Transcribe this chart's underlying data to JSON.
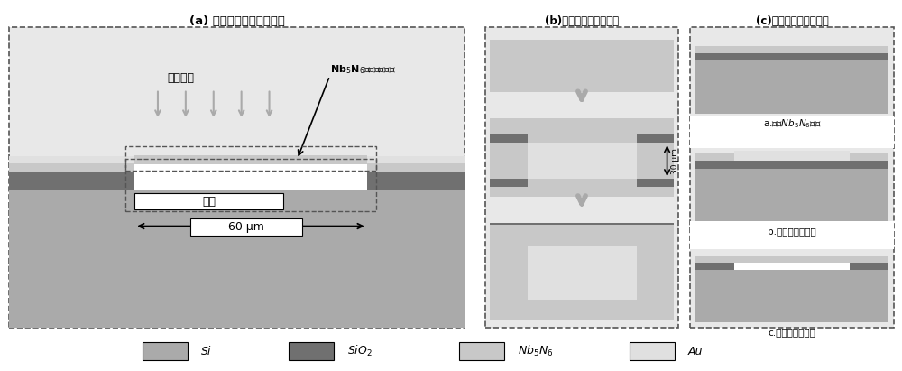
{
  "bg_color": "#ffffff",
  "Si_color": "#aaaaaa",
  "SiO2_color": "#707070",
  "NbN_color": "#c8c8c8",
  "Au_color": "#e0e0e0",
  "panel_bg": "#e8e8e8",
  "white_color": "#ffffff",
  "dashed_color": "#555555",
  "title_a": "(a) 悬空微桥探测器示意图",
  "title_b": "(b)器件工艺流程俯视图",
  "title_c": "(c)器件工艺流程侧视图",
  "label_terahertz": "太赫兹波",
  "label_bridge": "Nb$_5$N$_6$薄膜悬空微桥",
  "label_air": "空气",
  "label_60um": "60 μm",
  "label_30um": "30 μm",
  "label_a_side": "a.溅射$Nb_5N_6$薄膜",
  "label_b_side": "b.光刻剥离金天线",
  "label_c_side": "c.光刻挖通空气桥",
  "legend_Si": "Si",
  "legend_SiO2": "SiO$_2$",
  "legend_NbN": "Nb$_5$N$_6$",
  "legend_Au": "Au"
}
